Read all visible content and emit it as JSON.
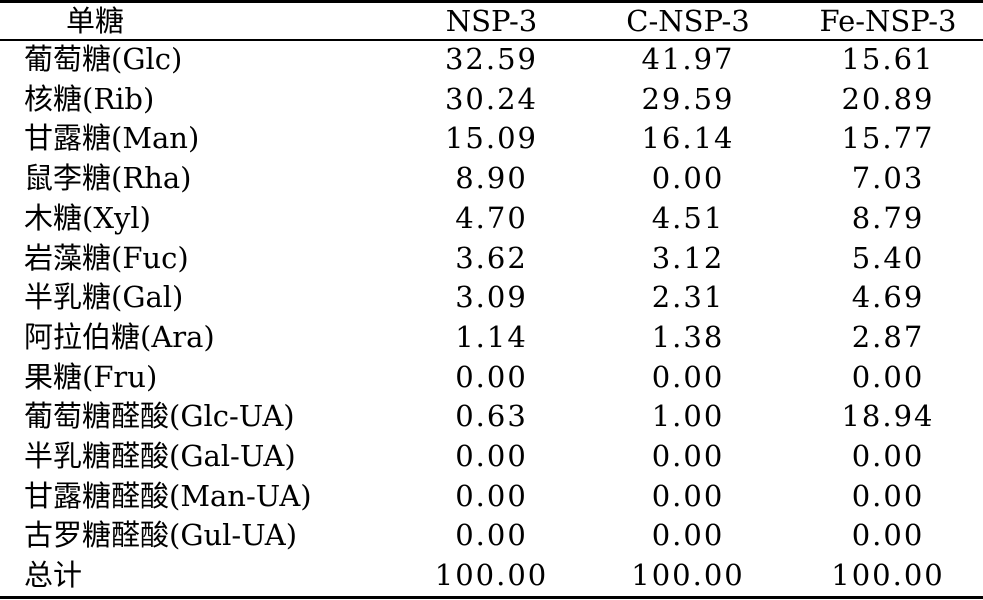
{
  "table": {
    "headers": [
      "单糖",
      "NSP-3",
      "C-NSP-3",
      "Fe-NSP-3"
    ],
    "rows": [
      {
        "name": "葡萄糖(Glc)",
        "v1": "32.59",
        "v2": "41.97",
        "v3": "15.61"
      },
      {
        "name": "核糖(Rib)",
        "v1": "30.24",
        "v2": "29.59",
        "v3": "20.89"
      },
      {
        "name": "甘露糖(Man)",
        "v1": "15.09",
        "v2": "16.14",
        "v3": "15.77"
      },
      {
        "name": "鼠李糖(Rha)",
        "v1": "8.90",
        "v2": "0.00",
        "v3": "7.03"
      },
      {
        "name": "木糖(Xyl)",
        "v1": "4.70",
        "v2": "4.51",
        "v3": "8.79"
      },
      {
        "name": "岩藻糖(Fuc)",
        "v1": "3.62",
        "v2": "3.12",
        "v3": "5.40"
      },
      {
        "name": "半乳糖(Gal)",
        "v1": "3.09",
        "v2": "2.31",
        "v3": "4.69"
      },
      {
        "name": "阿拉伯糖(Ara)",
        "v1": "1.14",
        "v2": "1.38",
        "v3": "2.87"
      },
      {
        "name": "果糖(Fru)",
        "v1": "0.00",
        "v2": "0.00",
        "v3": "0.00"
      },
      {
        "name": "葡萄糖醛酸(Glc-UA)",
        "v1": "0.63",
        "v2": "1.00",
        "v3": "18.94"
      },
      {
        "name": "半乳糖醛酸(Gal-UA)",
        "v1": "0.00",
        "v2": "0.00",
        "v3": "0.00"
      },
      {
        "name": "甘露糖醛酸(Man-UA)",
        "v1": "0.00",
        "v2": "0.00",
        "v3": "0.00"
      },
      {
        "name": "古罗糖醛酸(Gul-UA)",
        "v1": "0.00",
        "v2": "0.00",
        "v3": "0.00"
      },
      {
        "name": "总计",
        "v1": "100.00",
        "v2": "100.00",
        "v3": "100.00"
      }
    ]
  }
}
